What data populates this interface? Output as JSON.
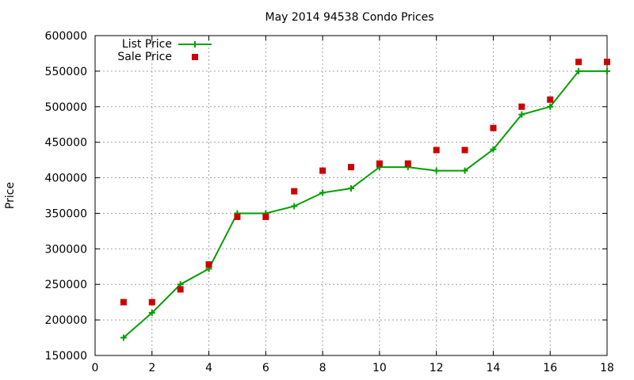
{
  "chart_data": {
    "type": "line",
    "title": "May 2014 94538 Condo Prices",
    "xlabel": "",
    "ylabel": "Price",
    "xlim": [
      0,
      18
    ],
    "ylim": [
      150000,
      600000
    ],
    "xticks": [
      0,
      2,
      4,
      6,
      8,
      10,
      12,
      14,
      16,
      18
    ],
    "yticks": [
      150000,
      200000,
      250000,
      300000,
      350000,
      400000,
      450000,
      500000,
      550000,
      600000
    ],
    "grid": true,
    "legend_position": "top-left",
    "series": [
      {
        "name": "List Price",
        "style": "line+plus",
        "color": "#00a000",
        "x": [
          1,
          2,
          3,
          4,
          5,
          6,
          7,
          8,
          9,
          10,
          11,
          12,
          13,
          14,
          15,
          16,
          17,
          18
        ],
        "values": [
          175000,
          210000,
          250000,
          272000,
          350000,
          350000,
          360000,
          379000,
          385000,
          415000,
          415000,
          410000,
          410000,
          440000,
          489000,
          500000,
          550000,
          550000
        ]
      },
      {
        "name": "Sale Price",
        "style": "points-square",
        "color": "#cc0000",
        "x": [
          1,
          2,
          3,
          4,
          5,
          6,
          7,
          8,
          9,
          10,
          11,
          12,
          13,
          14,
          15,
          16,
          17,
          18
        ],
        "values": [
          225000,
          225000,
          243000,
          278000,
          345000,
          345000,
          381000,
          410000,
          415000,
          420000,
          420000,
          439000,
          439000,
          470000,
          500000,
          510000,
          563000,
          563000
        ]
      }
    ]
  }
}
